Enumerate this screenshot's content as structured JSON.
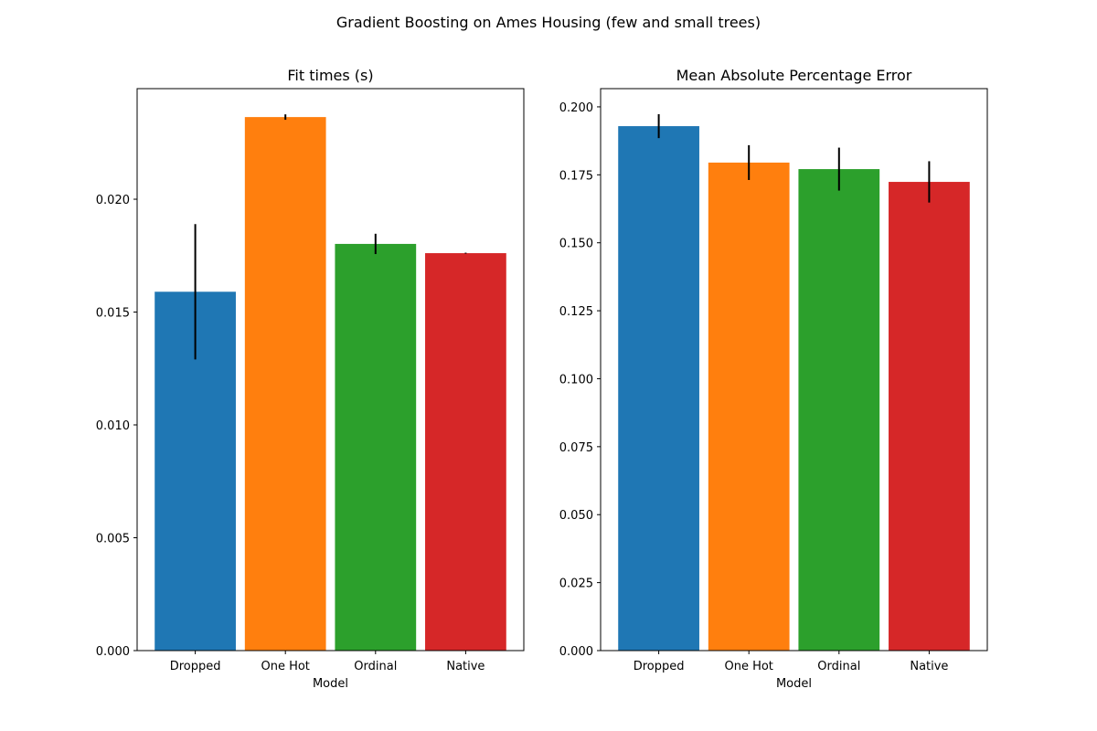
{
  "suptitle": "Gradient Boosting on Ames Housing (few and small trees)",
  "chart_data": [
    {
      "type": "bar",
      "title": "Fit times (s)",
      "xlabel": "Model",
      "ylabel": "",
      "categories": [
        "Dropped",
        "One Hot",
        "Ordinal",
        "Native"
      ],
      "values": [
        0.0159,
        0.02364,
        0.01802,
        0.01761
      ],
      "errors": [
        0.003,
        0.00012,
        0.00045,
        2e-05
      ],
      "colors": [
        "#1f77b4",
        "#ff7f0e",
        "#2ca02c",
        "#d62728"
      ],
      "ylim": [
        0,
        0.0249
      ],
      "yticks": [
        0.0,
        0.005,
        0.01,
        0.015,
        0.02
      ],
      "ytick_labels": [
        "0.000",
        "0.005",
        "0.010",
        "0.015",
        "0.020"
      ],
      "grid": false
    },
    {
      "type": "bar",
      "title": "Mean Absolute Percentage Error",
      "xlabel": "Model",
      "ylabel": "",
      "categories": [
        "Dropped",
        "One Hot",
        "Ordinal",
        "Native"
      ],
      "values": [
        0.1929,
        0.1795,
        0.1771,
        0.1724
      ],
      "errors": [
        0.0044,
        0.0064,
        0.0079,
        0.0076
      ],
      "colors": [
        "#1f77b4",
        "#ff7f0e",
        "#2ca02c",
        "#d62728"
      ],
      "ylim": [
        0,
        0.2067
      ],
      "yticks": [
        0,
        0.025,
        0.05,
        0.075,
        0.1,
        0.125,
        0.15,
        0.175,
        0.2
      ],
      "ytick_labels": [
        "0.000",
        "0.025",
        "0.050",
        "0.075",
        "0.100",
        "0.125",
        "0.150",
        "0.175",
        "0.200"
      ],
      "grid": false
    }
  ]
}
